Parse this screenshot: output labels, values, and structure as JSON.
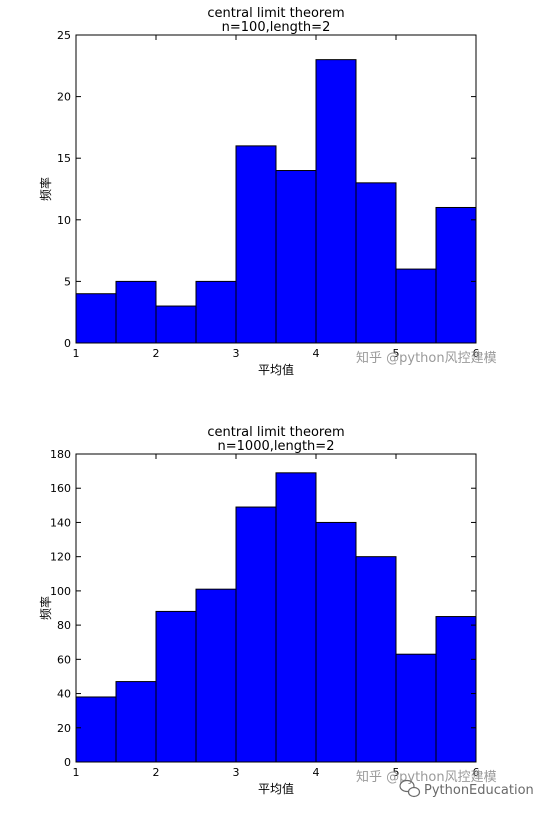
{
  "chart_data": [
    {
      "type": "bar",
      "title": "central limit theorem",
      "subtitle": "n=100,length=2",
      "xlabel": "平均值",
      "ylabel": "频率",
      "bin_edges": [
        1,
        1.5,
        2,
        2.5,
        3,
        3.5,
        4,
        4.5,
        5,
        5.5,
        6
      ],
      "values": [
        4,
        5,
        3,
        5,
        16,
        14,
        23,
        13,
        6,
        11
      ],
      "xlim": [
        1,
        6
      ],
      "ylim": [
        0,
        25
      ],
      "xticks": [
        1,
        2,
        3,
        4,
        5,
        6
      ],
      "yticks": [
        0,
        5,
        10,
        15,
        20,
        25
      ],
      "bar_color": "#0000ff",
      "grid": false
    },
    {
      "type": "bar",
      "title": "central limit theorem",
      "subtitle": "n=1000,length=2",
      "xlabel": "平均值",
      "ylabel": "频率",
      "bin_edges": [
        1,
        1.5,
        2,
        2.5,
        3,
        3.5,
        4,
        4.5,
        5,
        5.5,
        6
      ],
      "values": [
        38,
        47,
        88,
        101,
        149,
        169,
        140,
        120,
        63,
        85
      ],
      "xlim": [
        1,
        6
      ],
      "ylim": [
        0,
        180
      ],
      "xticks": [
        1,
        2,
        3,
        4,
        5,
        6
      ],
      "yticks": [
        0,
        20,
        40,
        60,
        80,
        100,
        120,
        140,
        160,
        180
      ],
      "bar_color": "#0000ff",
      "grid": false
    }
  ],
  "watermarks": {
    "zhihu_top": "知乎 @python风控建模",
    "zhihu_bottom": "知乎 @python风控建模",
    "wechat": "PythonEducation"
  }
}
